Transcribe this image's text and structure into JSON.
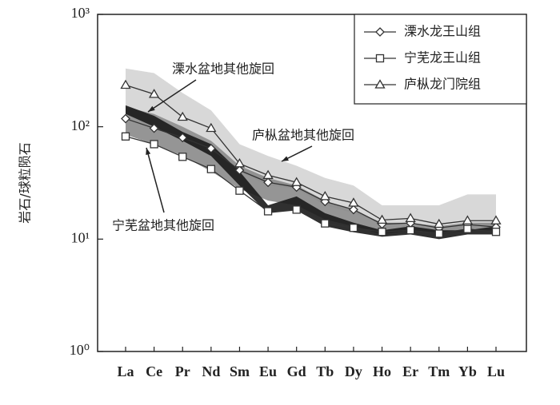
{
  "chart_data": {
    "type": "line",
    "y_label": "岩石/球粒陨石",
    "log_y": true,
    "categories": [
      "La",
      "Ce",
      "Pr",
      "Nd",
      "Sm",
      "Eu",
      "Gd",
      "Tb",
      "Dy",
      "Ho",
      "Er",
      "Tm",
      "Yb",
      "Lu"
    ],
    "ylim": [
      1,
      1000
    ],
    "yticks": [
      {
        "value": 1,
        "label": "10⁰"
      },
      {
        "value": 10,
        "label": "10¹"
      },
      {
        "value": 100,
        "label": "10²"
      },
      {
        "value": 1000,
        "label": "10³"
      }
    ],
    "legend": "top-right",
    "series": [
      {
        "name": "溧水龙王山组",
        "marker": "diamond",
        "color": "#333333",
        "values": [
          118,
          97,
          80,
          64,
          41,
          32,
          29,
          21.6,
          18.3,
          13.6,
          13.9,
          12.6,
          13.5,
          12.8
        ]
      },
      {
        "name": "宁芜龙王山组",
        "marker": "square",
        "color": "#333333",
        "values": [
          82,
          70,
          54,
          42,
          27,
          17.7,
          18.3,
          13.8,
          12.6,
          11.6,
          12,
          11.2,
          12.3,
          11.6
        ]
      },
      {
        "name": "庐枞龙门院组",
        "marker": "triangle",
        "color": "#333333",
        "values": [
          235,
          195,
          122,
          97,
          47,
          37,
          32,
          24,
          21,
          14.8,
          15.3,
          13.6,
          14.6,
          14.6
        ]
      }
    ],
    "bands": [
      {
        "name": "庐枞盆地其他旋回",
        "color": "#d4d4d4",
        "high": [
          330,
          300,
          200,
          140,
          70,
          55,
          45,
          35,
          30,
          20,
          20,
          20,
          25,
          25
        ],
        "low": [
          150,
          130,
          100,
          75,
          40,
          30,
          28,
          20,
          17,
          14,
          14,
          13,
          13,
          13
        ]
      },
      {
        "name": "溧水盆地其他旋回",
        "color": "#8a8a8a",
        "high": [
          150,
          130,
          100,
          75,
          45,
          35,
          30,
          22,
          18,
          14,
          14,
          13,
          14,
          14
        ],
        "low": [
          85,
          70,
          55,
          40,
          28,
          22,
          20,
          15,
          13,
          11,
          12,
          11,
          12,
          12
        ]
      },
      {
        "name": "宁芜盆地其他旋回",
        "color": "#1a1a1a",
        "high": [
          155,
          125,
          90,
          70,
          40,
          20,
          24,
          17,
          14,
          12,
          13,
          12,
          12,
          13
        ],
        "low": [
          130,
          100,
          75,
          55,
          30,
          17,
          18,
          13,
          11.5,
          10.5,
          11,
          10,
          11,
          11
        ]
      }
    ]
  }
}
